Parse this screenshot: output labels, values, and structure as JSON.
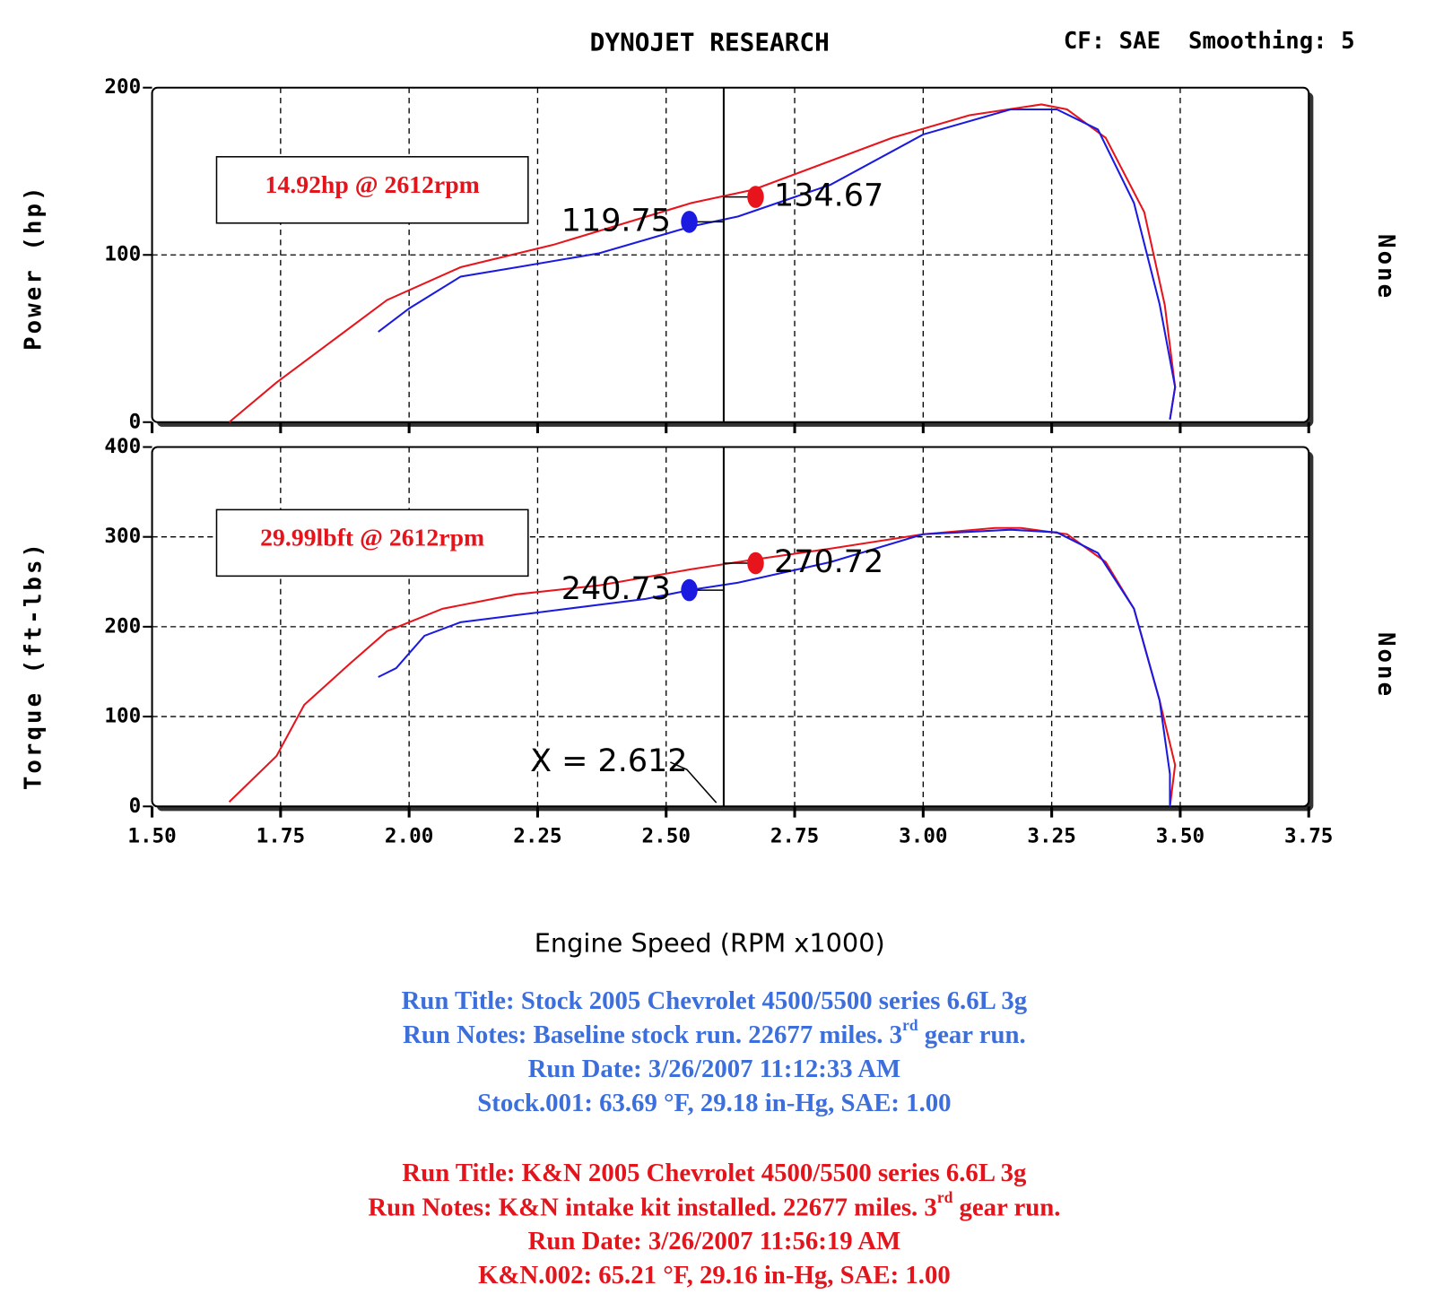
{
  "header": {
    "title": "DYNOJET RESEARCH",
    "settings": "CF: SAE  Smoothing: 5"
  },
  "chart_data": [
    {
      "type": "line",
      "ylabel": "Power (hp)",
      "y2label": "None",
      "annotation": "14.92hp @ 2612rpm",
      "xlim": [
        1.5,
        3.75
      ],
      "xticks": [
        {
          "value": 1.5,
          "label": "1.50"
        },
        {
          "value": 1.75,
          "label": "1.75"
        },
        {
          "value": 2,
          "label": "2.00"
        },
        {
          "value": 2.25,
          "label": "2.25"
        },
        {
          "value": 2.5,
          "label": "2.50"
        },
        {
          "value": 2.75,
          "label": "2.75"
        },
        {
          "value": 3,
          "label": "3.00"
        },
        {
          "value": 3.25,
          "label": "3.25"
        },
        {
          "value": 3.5,
          "label": "3.50"
        },
        {
          "value": 3.75,
          "label": "3.75"
        }
      ],
      "ylim": [
        0,
        200
      ],
      "yticks": [
        0,
        100,
        200
      ],
      "grid": true,
      "cursor": 2.612,
      "series": [
        {
          "color": "#e8141c",
          "x": [
            1.65,
            1.742,
            1.957,
            2.1,
            2.28,
            2.549,
            2.67,
            2.94,
            3.09,
            3.23,
            3.28,
            3.355,
            3.43,
            3.47,
            3.49,
            3.48
          ],
          "values": [
            0,
            23.7,
            73,
            92.6,
            106,
            131,
            139,
            170,
            183.5,
            190,
            187,
            170,
            125.6,
            70,
            21,
            1.6
          ]
        },
        {
          "color": "#1a1ae0",
          "x": [
            1.94,
            2.0,
            2.1,
            2.21,
            2.37,
            2.549,
            2.64,
            2.82,
            3.0,
            3.17,
            3.26,
            3.34,
            3.41,
            3.46,
            3.49,
            3.48
          ],
          "values": [
            54,
            68,
            87,
            92.6,
            101,
            117,
            123,
            142,
            172,
            187,
            187,
            175,
            131,
            70.5,
            21,
            1.6
          ]
        }
      ],
      "markers": [
        {
          "color": "#1a1ae0",
          "x": 2.545,
          "y": 119.75
        },
        {
          "color": "#e8141c",
          "x": 2.674,
          "y": 134.67
        }
      ]
    },
    {
      "type": "line",
      "ylabel": "Torque (ft-lbs)",
      "y2label": "None",
      "xlabel": "Engine Speed (RPM x1000)",
      "annotation": "29.99lbft @ 2612rpm",
      "cursor_label": "X = 2.612",
      "xlim": [
        1.5,
        3.75
      ],
      "xticks": [
        {
          "value": 1.5,
          "label": "1.50"
        },
        {
          "value": 1.75,
          "label": "1.75"
        },
        {
          "value": 2,
          "label": "2.00"
        },
        {
          "value": 2.25,
          "label": "2.25"
        },
        {
          "value": 2.5,
          "label": "2.50"
        },
        {
          "value": 2.75,
          "label": "2.75"
        },
        {
          "value": 3,
          "label": "3.00"
        },
        {
          "value": 3.25,
          "label": "3.25"
        },
        {
          "value": 3.5,
          "label": "3.50"
        },
        {
          "value": 3.75,
          "label": "3.75"
        }
      ],
      "ylim": [
        0,
        400
      ],
      "yticks": [
        0,
        100,
        200,
        300,
        400
      ],
      "grid": true,
      "cursor": 2.612,
      "series": [
        {
          "color": "#e8141c",
          "x": [
            1.65,
            1.742,
            1.796,
            1.885,
            1.957,
            2.065,
            2.208,
            2.37,
            2.549,
            2.674,
            2.82,
            3.0,
            3.14,
            3.19,
            3.28,
            3.355,
            3.41,
            3.46,
            3.49,
            3.48
          ],
          "values": [
            5,
            56,
            113,
            159,
            195,
            220,
            236,
            246,
            264,
            275,
            287,
            303,
            310,
            310,
            303,
            272,
            220,
            118,
            46,
            0
          ]
        },
        {
          "color": "#1a1ae0",
          "x": [
            1.94,
            1.975,
            2.03,
            2.1,
            2.28,
            2.46,
            2.549,
            2.64,
            2.82,
            3.0,
            3.17,
            3.26,
            3.34,
            3.41,
            3.46,
            3.48,
            3.48
          ],
          "values": [
            144,
            154,
            190,
            205,
            218,
            231,
            241,
            249,
            272,
            303,
            308,
            305,
            282,
            220,
            118,
            36,
            0
          ]
        }
      ],
      "markers": [
        {
          "color": "#1a1ae0",
          "x": 2.545,
          "y": 240.73
        },
        {
          "color": "#e8141c",
          "x": 2.674,
          "y": 270.72
        }
      ]
    }
  ],
  "runs": [
    {
      "color": "#3d6fdc",
      "lines": [
        "Run Title: Stock 2005 Chevrolet 4500/5500 series 6.6L 3g",
        {
          "text": "Run Notes: Baseline stock run. 22677 miles. 3",
          "sup": "rd",
          "after": " gear run."
        },
        "Run Date: 3/26/2007 11:12:33 AM",
        "Stock.001: 63.69 °F, 29.18 in-Hg, SAE: 1.00"
      ]
    },
    {
      "color": "#e3141b",
      "lines": [
        "Run Title: K&N 2005 Chevrolet 4500/5500 series 6.6L 3g",
        {
          "text": "Run Notes: K&N intake kit installed. 22677 miles. 3",
          "sup": "rd",
          "after": " gear run."
        },
        "Run Date: 3/26/2007 11:56:19 AM",
        "K&N.002: 65.21 °F, 29.16 in-Hg, SAE: 1.00"
      ]
    }
  ]
}
